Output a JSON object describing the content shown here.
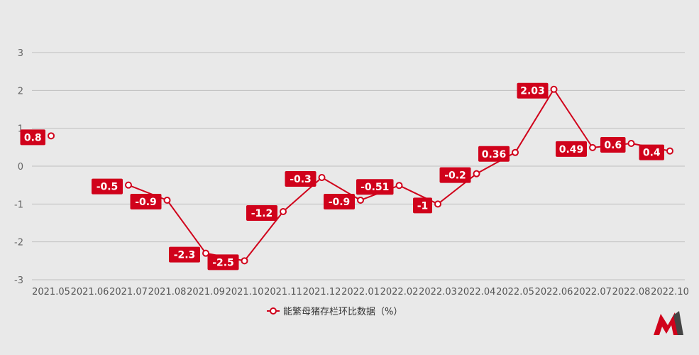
{
  "chart_data": {
    "type": "line",
    "categories": [
      "2021.05",
      "2021.06",
      "2021.07",
      "2021.08",
      "2021.09",
      "2021.10",
      "2021.11",
      "2021.12",
      "2022.01",
      "2022.02",
      "2022.03",
      "2022.04",
      "2022.05",
      "2022.06",
      "2022.07",
      "2022.08",
      "2022.10"
    ],
    "series": [
      {
        "name": "能繁母猪存栏环比数据（%）",
        "values": [
          0.8,
          null,
          -0.5,
          -0.9,
          -2.3,
          -2.5,
          -1.2,
          -0.3,
          -0.9,
          -0.51,
          -1,
          -0.2,
          0.36,
          2.03,
          0.49,
          0.6,
          0.4
        ],
        "labels": [
          "0.8",
          null,
          "-0.5",
          "-0.9",
          "-2.3",
          "-2.5",
          "-1.2",
          "-0.3",
          "-0.9",
          "-0.51",
          "-1",
          "-0.2",
          "0.36",
          "2.03",
          "0.49",
          "0.6",
          "0.4"
        ]
      }
    ],
    "ylim": [
      -3,
      3
    ],
    "yticks": [
      "3",
      "2",
      "1",
      "0",
      "-1",
      "-2",
      "-3"
    ],
    "grid": true,
    "legend": "bottom-center",
    "colors": {
      "line": "#d0021b",
      "label_bg": "#d0021b",
      "grid": "#bfbfbf",
      "background": "#e9e9e9"
    },
    "watermark": "logo"
  }
}
